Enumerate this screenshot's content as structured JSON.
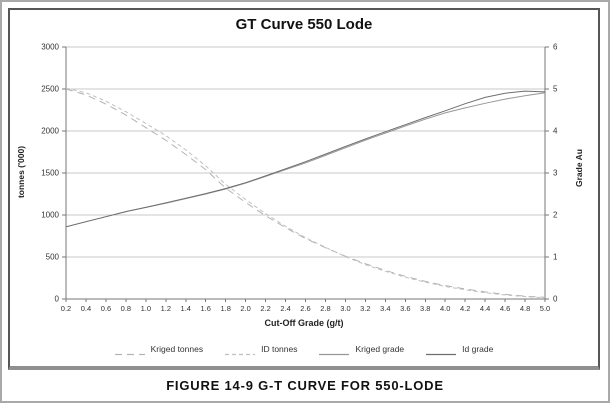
{
  "figure": {
    "caption": "FIGURE 14-9 G-T CURVE FOR 550-LODE"
  },
  "chart_data": {
    "type": "line",
    "title": "GT Curve 550 Lode",
    "xlabel": "Cut-Off Grade (g/t)",
    "ylabel_left": "tonnes ('000)",
    "ylabel_right": "Grade Au",
    "grid": "horizontal",
    "legend_position": "bottom",
    "xlim": [
      0.2,
      5.0
    ],
    "ylim_left": [
      0,
      3000
    ],
    "ylim_right": [
      0,
      6
    ],
    "x": [
      0.2,
      0.4,
      0.6,
      0.8,
      1.0,
      1.2,
      1.4,
      1.6,
      1.8,
      2.0,
      2.2,
      2.4,
      2.6,
      2.8,
      3.0,
      3.2,
      3.4,
      3.6,
      3.8,
      4.0,
      4.2,
      4.4,
      4.6,
      4.8,
      5.0
    ],
    "x_tick_labels": [
      "0.2",
      "0.4",
      "0.6",
      "0.8",
      "1.0",
      "1.2",
      "1.4",
      "1.6",
      "1.8",
      "2.0",
      "2.2",
      "2.4",
      "2.6",
      "2.8",
      "3.0",
      "3.2",
      "3.4",
      "3.6",
      "3.8",
      "4.0",
      "4.2",
      "4.4",
      "4.6",
      "4.8",
      "5.0"
    ],
    "y_ticks_left": [
      0,
      500,
      1000,
      1500,
      2000,
      2500,
      3000
    ],
    "y_ticks_right": [
      0,
      1,
      2,
      3,
      4,
      5,
      6
    ],
    "axis_color": "#777777",
    "gridline_color": "#c8c8c8",
    "series": [
      {
        "name": "Kriged tonnes",
        "axis": "left",
        "style": "dashed-long",
        "color": "#b3b3b3",
        "values": [
          2500,
          2430,
          2320,
          2190,
          2040,
          1890,
          1720,
          1540,
          1320,
          1150,
          990,
          850,
          720,
          610,
          510,
          420,
          340,
          270,
          210,
          160,
          120,
          85,
          55,
          35,
          20
        ]
      },
      {
        "name": "ID tonnes",
        "axis": "left",
        "style": "dashed-short",
        "color": "#c0c0c0",
        "values": [
          2510,
          2455,
          2355,
          2230,
          2090,
          1945,
          1775,
          1585,
          1365,
          1185,
          1015,
          865,
          730,
          615,
          505,
          410,
          330,
          260,
          200,
          150,
          110,
          75,
          48,
          28,
          15
        ]
      },
      {
        "name": "Kriged grade",
        "axis": "right",
        "style": "solid",
        "color": "#979797",
        "values": [
          1.72,
          1.84,
          1.96,
          2.08,
          2.18,
          2.28,
          2.39,
          2.5,
          2.62,
          2.76,
          2.92,
          3.08,
          3.24,
          3.42,
          3.6,
          3.78,
          3.95,
          4.12,
          4.28,
          4.43,
          4.55,
          4.66,
          4.76,
          4.84,
          4.91
        ]
      },
      {
        "name": "Id grade",
        "axis": "right",
        "style": "solid",
        "color": "#6e6e6e",
        "values": [
          1.72,
          1.84,
          1.96,
          2.08,
          2.18,
          2.29,
          2.4,
          2.51,
          2.63,
          2.77,
          2.93,
          3.1,
          3.27,
          3.45,
          3.63,
          3.81,
          3.98,
          4.15,
          4.32,
          4.48,
          4.65,
          4.8,
          4.9,
          4.95,
          4.93
        ]
      }
    ]
  }
}
